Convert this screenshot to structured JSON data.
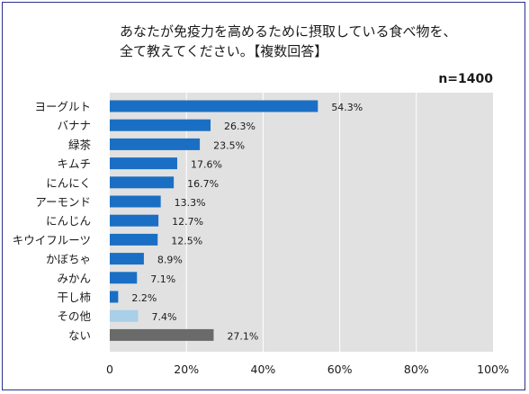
{
  "chart_data": {
    "type": "bar",
    "orientation": "horizontal",
    "title_line1": "あなたが免疫力を高めるために摂取している食べ物を、",
    "title_line2": "全て教えてください。【複数回答】",
    "sample_size": "n=1400",
    "xlim": [
      0,
      100
    ],
    "x_ticks": [
      "0",
      "20%",
      "40%",
      "60%",
      "80%",
      "100%"
    ],
    "grid": true,
    "plot_background": "#e1e1e1",
    "categories": [
      "ヨーグルト",
      "バナナ",
      "緑茶",
      "キムチ",
      "にんにく",
      "アーモンド",
      "にんじん",
      "キウイフルーツ",
      "かぼちゃ",
      "みかん",
      "干し柿",
      "その他",
      "ない"
    ],
    "values": [
      54.3,
      26.3,
      23.5,
      17.6,
      16.7,
      13.3,
      12.7,
      12.5,
      8.9,
      7.1,
      2.2,
      7.4,
      27.1
    ],
    "value_labels": [
      "54.3%",
      "26.3%",
      "23.5%",
      "17.6%",
      "16.7%",
      "13.3%",
      "12.7%",
      "12.5%",
      "8.9%",
      "7.1%",
      "2.2%",
      "7.4%",
      "27.1%"
    ],
    "bar_colors": [
      "#1a6fc4",
      "#1a6fc4",
      "#1a6fc4",
      "#1a6fc4",
      "#1a6fc4",
      "#1a6fc4",
      "#1a6fc4",
      "#1a6fc4",
      "#1a6fc4",
      "#1a6fc4",
      "#1a6fc4",
      "#a9cfe9",
      "#6a6a6a"
    ]
  }
}
